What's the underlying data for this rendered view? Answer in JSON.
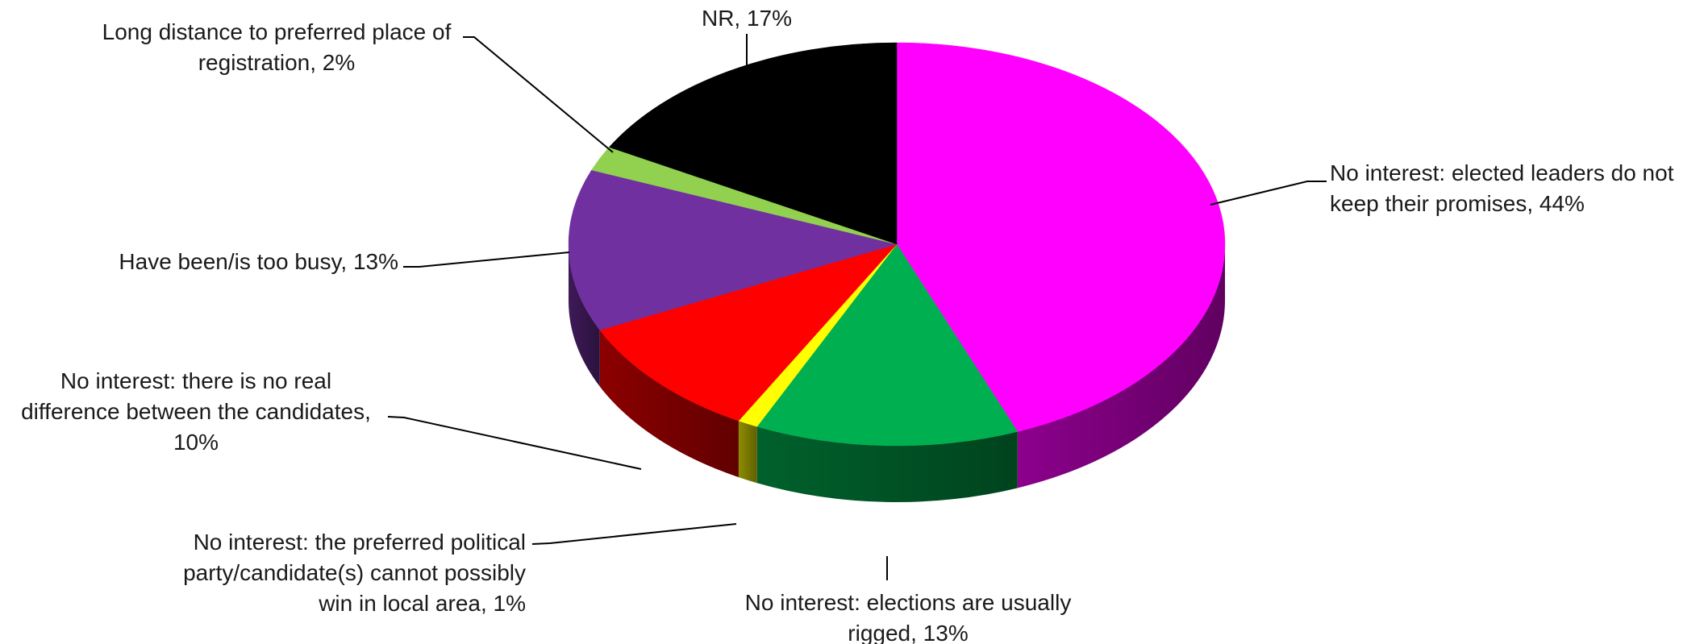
{
  "chart_data": {
    "type": "pie",
    "style": "3d",
    "start": "12 o'clock",
    "direction": "clockwise",
    "slices": [
      {
        "label_lines": [
          "No interest: elected leaders do not",
          "keep their promises, 44%"
        ],
        "value": 44,
        "color": "#ff00ff"
      },
      {
        "label_lines": [
          "No interest: elections are usually",
          "rigged, 13%"
        ],
        "value": 13,
        "color": "#00b050"
      },
      {
        "label_lines": [
          "No interest: the preferred political",
          "party/candidate(s) cannot possibly",
          "win in local area, 1%"
        ],
        "value": 1,
        "color": "#ffff00"
      },
      {
        "label_lines": [
          "No interest: there is no real",
          "difference between the candidates,",
          "10%"
        ],
        "value": 10,
        "color": "#ff0000"
      },
      {
        "label_lines": [
          "Have been/is too busy, 13%"
        ],
        "value": 13,
        "color": "#7030a0"
      },
      {
        "label_lines": [
          "Long distance to preferred place of",
          "registration, 2%"
        ],
        "value": 2,
        "color": "#92d050"
      },
      {
        "label_lines": [
          "NR, 17%"
        ],
        "value": 17,
        "color": "#000000"
      }
    ]
  }
}
